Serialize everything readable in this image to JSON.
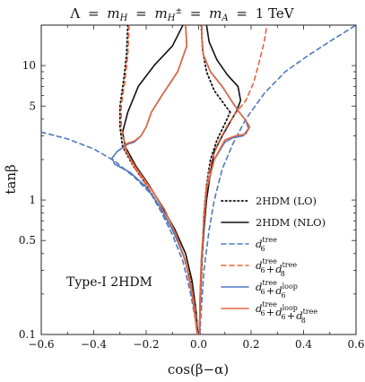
{
  "chart_data": {
    "type": "line",
    "title": "Λ = m_H = m_H± = m_A = 1 TeV",
    "title_parts": {
      "lambda": "Λ",
      "eq": "=",
      "mH": "m",
      "mH_sub": "H",
      "mHp": "m",
      "mHp_sub": "H",
      "mHp_sup": "±",
      "mA": "m",
      "mA_sub": "A",
      "value": "1 TeV"
    },
    "xlabel": "cos(β−α)",
    "ylabel": "tanβ",
    "xlim": [
      -0.6,
      0.6
    ],
    "ylim": [
      0.1,
      20
    ],
    "yscale": "log",
    "grid": false,
    "legend_position": "right",
    "x_ticks": [
      -0.6,
      -0.4,
      -0.2,
      0.0,
      0.2,
      0.4,
      0.6
    ],
    "x_tick_labels": [
      "−0.6",
      "−0.4",
      "−0.2",
      "0.0",
      "0.2",
      "0.4",
      "0.6"
    ],
    "y_ticks": [
      0.1,
      0.5,
      1,
      5,
      10
    ],
    "y_tick_labels": [
      "0.1",
      "0.5",
      "1",
      "5",
      "10"
    ],
    "annotation": "Type-I 2HDM",
    "colors": {
      "black": "#111111",
      "blue": "#4f79bd",
      "orange": "#e4643f"
    },
    "legend": [
      {
        "label": "2HDM (LO)",
        "color": "#111111",
        "dash": "dot"
      },
      {
        "label": "2HDM (NLO)",
        "color": "#111111",
        "dash": "solid"
      },
      {
        "label": "d6^tree",
        "base": "d",
        "sub": "6",
        "sup": "tree",
        "color": "#4f79bd",
        "dash": "dash"
      },
      {
        "label": "d6^tree + d8^tree",
        "base": "d",
        "sub": "6",
        "sup": "tree",
        "base2": "d",
        "sub2": "8",
        "sup2": "tree",
        "color": "#e4643f",
        "dash": "dash"
      },
      {
        "label": "d6^tree + d6^loop",
        "base": "d",
        "sub": "6",
        "sup": "tree",
        "base2": "d",
        "sub2": "6",
        "sup2": "loop",
        "color": "#4f79bd",
        "dash": "solid"
      },
      {
        "label": "d6^tree + d6^loop + d8^tree",
        "base": "d",
        "sub": "6",
        "sup": "tree",
        "base2": "d",
        "sub2": "6",
        "sup2": "loop",
        "base3": "d",
        "sub3": "8",
        "sup3": "tree",
        "color": "#e4643f",
        "dash": "solid"
      }
    ],
    "series": [
      {
        "legend": "2HDM (LO)",
        "color": "#111111",
        "dash": "dot",
        "segments": [
          [
            [
              -0.27,
              20
            ],
            [
              -0.275,
              12
            ],
            [
              -0.285,
              8
            ],
            [
              -0.3,
              5
            ],
            [
              -0.3,
              3.5
            ],
            [
              -0.29,
              2.5
            ],
            [
              -0.25,
              1.8
            ],
            [
              -0.2,
              1.3
            ],
            [
              -0.15,
              0.9
            ],
            [
              -0.1,
              0.6
            ],
            [
              -0.06,
              0.4
            ],
            [
              -0.03,
              0.25
            ],
            [
              -0.015,
              0.15
            ],
            [
              -0.005,
              0.1
            ]
          ],
          [
            [
              0.005,
              0.1
            ],
            [
              0.005,
              0.15
            ],
            [
              0.01,
              0.25
            ],
            [
              0.015,
              0.45
            ],
            [
              0.02,
              0.8
            ],
            [
              0.03,
              1.3
            ],
            [
              0.045,
              2.0
            ],
            [
              0.07,
              2.8
            ],
            [
              0.1,
              3.7
            ],
            [
              0.12,
              4.5
            ]
          ],
          [
            [
              0.12,
              4.5
            ],
            [
              0.06,
              6.5
            ],
            [
              0.03,
              9
            ],
            [
              0.015,
              13
            ],
            [
              0.01,
              20
            ]
          ]
        ]
      },
      {
        "legend": "2HDM (NLO)",
        "color": "#111111",
        "dash": "solid",
        "segments": [
          [
            [
              -0.06,
              20
            ],
            [
              -0.1,
              14
            ],
            [
              -0.17,
              10
            ],
            [
              -0.23,
              7
            ],
            [
              -0.27,
              4.5
            ],
            [
              -0.29,
              3.2
            ],
            [
              -0.28,
              2.5
            ],
            [
              -0.24,
              1.8
            ],
            [
              -0.19,
              1.3
            ],
            [
              -0.14,
              0.9
            ],
            [
              -0.09,
              0.6
            ],
            [
              -0.05,
              0.4
            ],
            [
              -0.025,
              0.25
            ],
            [
              -0.01,
              0.15
            ],
            [
              -0.003,
              0.1
            ]
          ],
          [
            [
              0.003,
              0.1
            ],
            [
              0.005,
              0.15
            ],
            [
              0.01,
              0.3
            ],
            [
              0.02,
              0.6
            ],
            [
              0.03,
              1.0
            ],
            [
              0.045,
              1.6
            ],
            [
              0.06,
              2.3
            ],
            [
              0.09,
              3.0
            ],
            [
              0.12,
              3.8
            ],
            [
              0.145,
              4.6
            ],
            [
              0.16,
              5.5
            ],
            [
              0.15,
              7
            ],
            [
              0.11,
              8.5
            ],
            [
              0.07,
              11
            ],
            [
              0.04,
              15
            ],
            [
              0.03,
              20
            ]
          ]
        ]
      },
      {
        "legend": "d6^tree",
        "color": "#4f79bd",
        "dash": "dash",
        "segments": [
          [
            [
              -0.6,
              3.2
            ],
            [
              -0.5,
              2.85
            ],
            [
              -0.4,
              2.4
            ],
            [
              -0.32,
              1.95
            ],
            [
              -0.24,
              1.45
            ],
            [
              -0.18,
              1.1
            ],
            [
              -0.14,
              0.8
            ],
            [
              -0.1,
              0.55
            ],
            [
              -0.06,
              0.35
            ],
            [
              -0.03,
              0.2
            ],
            [
              -0.01,
              0.12
            ],
            [
              -0.004,
              0.1
            ]
          ],
          [
            [
              0.004,
              0.1
            ],
            [
              0.01,
              0.15
            ],
            [
              0.02,
              0.3
            ],
            [
              0.04,
              0.6
            ],
            [
              0.06,
              1.0
            ],
            [
              0.09,
              1.7
            ],
            [
              0.13,
              2.6
            ],
            [
              0.18,
              4.0
            ],
            [
              0.25,
              6.2
            ],
            [
              0.33,
              9
            ],
            [
              0.42,
              12
            ],
            [
              0.52,
              16
            ],
            [
              0.6,
              20
            ]
          ]
        ]
      },
      {
        "legend": "d6^tree + d8^tree",
        "color": "#e4643f",
        "dash": "dash",
        "segments": [
          [
            [
              -0.265,
              20
            ],
            [
              -0.27,
              12
            ],
            [
              -0.28,
              8
            ],
            [
              -0.295,
              5
            ],
            [
              -0.295,
              3.5
            ],
            [
              -0.28,
              2.5
            ],
            [
              -0.25,
              1.8
            ],
            [
              -0.2,
              1.3
            ],
            [
              -0.15,
              0.9
            ],
            [
              -0.1,
              0.6
            ],
            [
              -0.06,
              0.4
            ],
            [
              -0.03,
              0.25
            ],
            [
              -0.012,
              0.15
            ],
            [
              -0.004,
              0.1
            ]
          ],
          [
            [
              0.004,
              0.1
            ],
            [
              0.006,
              0.15
            ],
            [
              0.01,
              0.25
            ],
            [
              0.015,
              0.45
            ],
            [
              0.02,
              0.8
            ],
            [
              0.03,
              1.3
            ],
            [
              0.05,
              2.0
            ],
            [
              0.08,
              2.8
            ],
            [
              0.11,
              3.6
            ],
            [
              0.14,
              4.4
            ],
            [
              0.18,
              5.5
            ],
            [
              0.21,
              7.5
            ],
            [
              0.23,
              10.5
            ],
            [
              0.25,
              15
            ],
            [
              0.26,
              20
            ]
          ]
        ]
      },
      {
        "legend": "d6^tree + d6^loop",
        "color": "#4f79bd",
        "dash": "solid",
        "segments": [
          [
            [
              0.012,
              20
            ],
            [
              0.012,
              16
            ],
            [
              0.018,
              12
            ],
            [
              0.045,
              9
            ],
            [
              0.09,
              7
            ],
            [
              0.13,
              5.3
            ],
            [
              0.155,
              4.5
            ],
            [
              0.18,
              3.9
            ],
            [
              0.19,
              3.4
            ],
            [
              0.17,
              3.0
            ],
            [
              0.13,
              2.9
            ],
            [
              0.1,
              2.7
            ],
            [
              0.06,
              2.0
            ],
            [
              0.03,
              1.2
            ],
            [
              0.02,
              0.7
            ],
            [
              0.01,
              0.35
            ],
            [
              0.005,
              0.18
            ],
            [
              0.003,
              0.1
            ]
          ],
          [
            [
              -0.05,
              20
            ],
            [
              -0.045,
              14
            ],
            [
              -0.08,
              9
            ],
            [
              -0.14,
              6
            ],
            [
              -0.18,
              4.5
            ],
            [
              -0.2,
              3.5
            ],
            [
              -0.22,
              3.0
            ],
            [
              -0.245,
              2.7
            ],
            [
              -0.27,
              2.6
            ],
            [
              -0.29,
              2.45
            ],
            [
              -0.31,
              2.3
            ],
            [
              -0.33,
              2.05
            ],
            [
              -0.32,
              1.85
            ],
            [
              -0.26,
              1.6
            ],
            [
              -0.2,
              1.25
            ],
            [
              -0.14,
              0.85
            ],
            [
              -0.09,
              0.55
            ],
            [
              -0.05,
              0.35
            ],
            [
              -0.025,
              0.2
            ],
            [
              -0.01,
              0.12
            ],
            [
              -0.005,
              0.1
            ]
          ]
        ]
      },
      {
        "legend": "d6^tree + d6^loop + d8^tree",
        "color": "#e4643f",
        "dash": "solid",
        "segments": [
          [
            [
              0.012,
              20
            ],
            [
              0.012,
              16
            ],
            [
              0.018,
              12
            ],
            [
              0.045,
              9
            ],
            [
              0.09,
              7
            ],
            [
              0.13,
              5.3
            ],
            [
              0.155,
              4.5
            ],
            [
              0.18,
              3.9
            ],
            [
              0.195,
              3.5
            ],
            [
              0.18,
              3.1
            ],
            [
              0.14,
              3.0
            ],
            [
              0.1,
              2.8
            ],
            [
              0.06,
              2.0
            ],
            [
              0.03,
              1.2
            ],
            [
              0.02,
              0.7
            ],
            [
              0.01,
              0.35
            ],
            [
              0.005,
              0.18
            ],
            [
              0.003,
              0.1
            ]
          ],
          [
            [
              -0.05,
              20
            ],
            [
              -0.045,
              14
            ],
            [
              -0.08,
              9
            ],
            [
              -0.14,
              6
            ],
            [
              -0.18,
              4.5
            ],
            [
              -0.2,
              3.5
            ],
            [
              -0.22,
              3.0
            ],
            [
              -0.245,
              2.75
            ],
            [
              -0.27,
              2.65
            ],
            [
              -0.285,
              2.55
            ],
            [
              -0.28,
              2.35
            ],
            [
              -0.24,
              1.75
            ],
            [
              -0.18,
              1.2
            ],
            [
              -0.13,
              0.85
            ],
            [
              -0.085,
              0.55
            ],
            [
              -0.05,
              0.35
            ],
            [
              -0.025,
              0.2
            ],
            [
              -0.01,
              0.12
            ],
            [
              -0.005,
              0.1
            ]
          ]
        ]
      }
    ]
  }
}
